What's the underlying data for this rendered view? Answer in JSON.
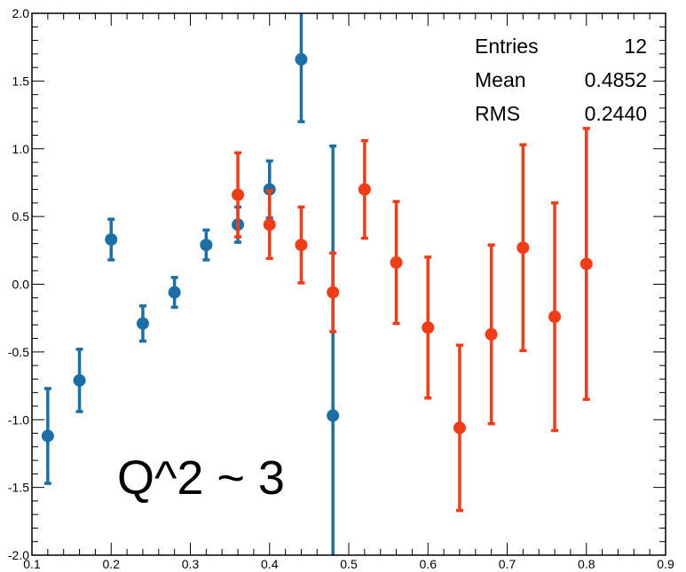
{
  "chart_data": {
    "type": "scatter",
    "xlim": [
      0.1,
      0.9
    ],
    "ylim": [
      -2.0,
      2.0
    ],
    "x_ticks": [
      "0.1",
      "0.2",
      "0.3",
      "0.4",
      "0.5",
      "0.6",
      "0.7",
      "0.8",
      "0.9"
    ],
    "y_ticks": [
      "-2.0",
      "-1.5",
      "-1.0",
      "-0.5",
      "0.0",
      "0.5",
      "1.0",
      "1.5",
      "2.0"
    ],
    "grid": false,
    "stats_box": {
      "position": "top-right",
      "rows": [
        {
          "label": "Entries",
          "value": "12"
        },
        {
          "label": "Mean",
          "value": "0.4852"
        },
        {
          "label": "RMS",
          "value": "0.2440"
        }
      ]
    },
    "annotation": "Q^2 ~ 3",
    "series": [
      {
        "color": "#1a6fa8",
        "points": [
          {
            "x": 0.12,
            "y": -1.12,
            "err": 0.35
          },
          {
            "x": 0.16,
            "y": -0.71,
            "err": 0.23
          },
          {
            "x": 0.2,
            "y": 0.33,
            "err": 0.15
          },
          {
            "x": 0.24,
            "y": -0.29,
            "err": 0.13
          },
          {
            "x": 0.28,
            "y": -0.06,
            "err": 0.11
          },
          {
            "x": 0.32,
            "y": 0.29,
            "err": 0.11
          },
          {
            "x": 0.36,
            "y": 0.44,
            "err": 0.13
          },
          {
            "x": 0.4,
            "y": 0.7,
            "err": 0.21
          },
          {
            "x": 0.44,
            "y": 1.66,
            "err": 0.46
          },
          {
            "x": 0.48,
            "y": -0.97,
            "err": 1.99
          }
        ]
      },
      {
        "color": "#f33c16",
        "points": [
          {
            "x": 0.36,
            "y": 0.66,
            "err": 0.31
          },
          {
            "x": 0.4,
            "y": 0.44,
            "err": 0.25
          },
          {
            "x": 0.44,
            "y": 0.29,
            "err": 0.28
          },
          {
            "x": 0.48,
            "y": -0.06,
            "err": 0.29
          },
          {
            "x": 0.52,
            "y": 0.7,
            "err": 0.36
          },
          {
            "x": 0.56,
            "y": 0.16,
            "err": 0.45
          },
          {
            "x": 0.6,
            "y": -0.32,
            "err": 0.52
          },
          {
            "x": 0.64,
            "y": -1.06,
            "err": 0.61
          },
          {
            "x": 0.68,
            "y": -0.37,
            "err": 0.66
          },
          {
            "x": 0.72,
            "y": 0.27,
            "err": 0.76
          },
          {
            "x": 0.76,
            "y": -0.24,
            "err": 0.84
          },
          {
            "x": 0.8,
            "y": 0.15,
            "err": 1.0
          }
        ]
      }
    ]
  }
}
